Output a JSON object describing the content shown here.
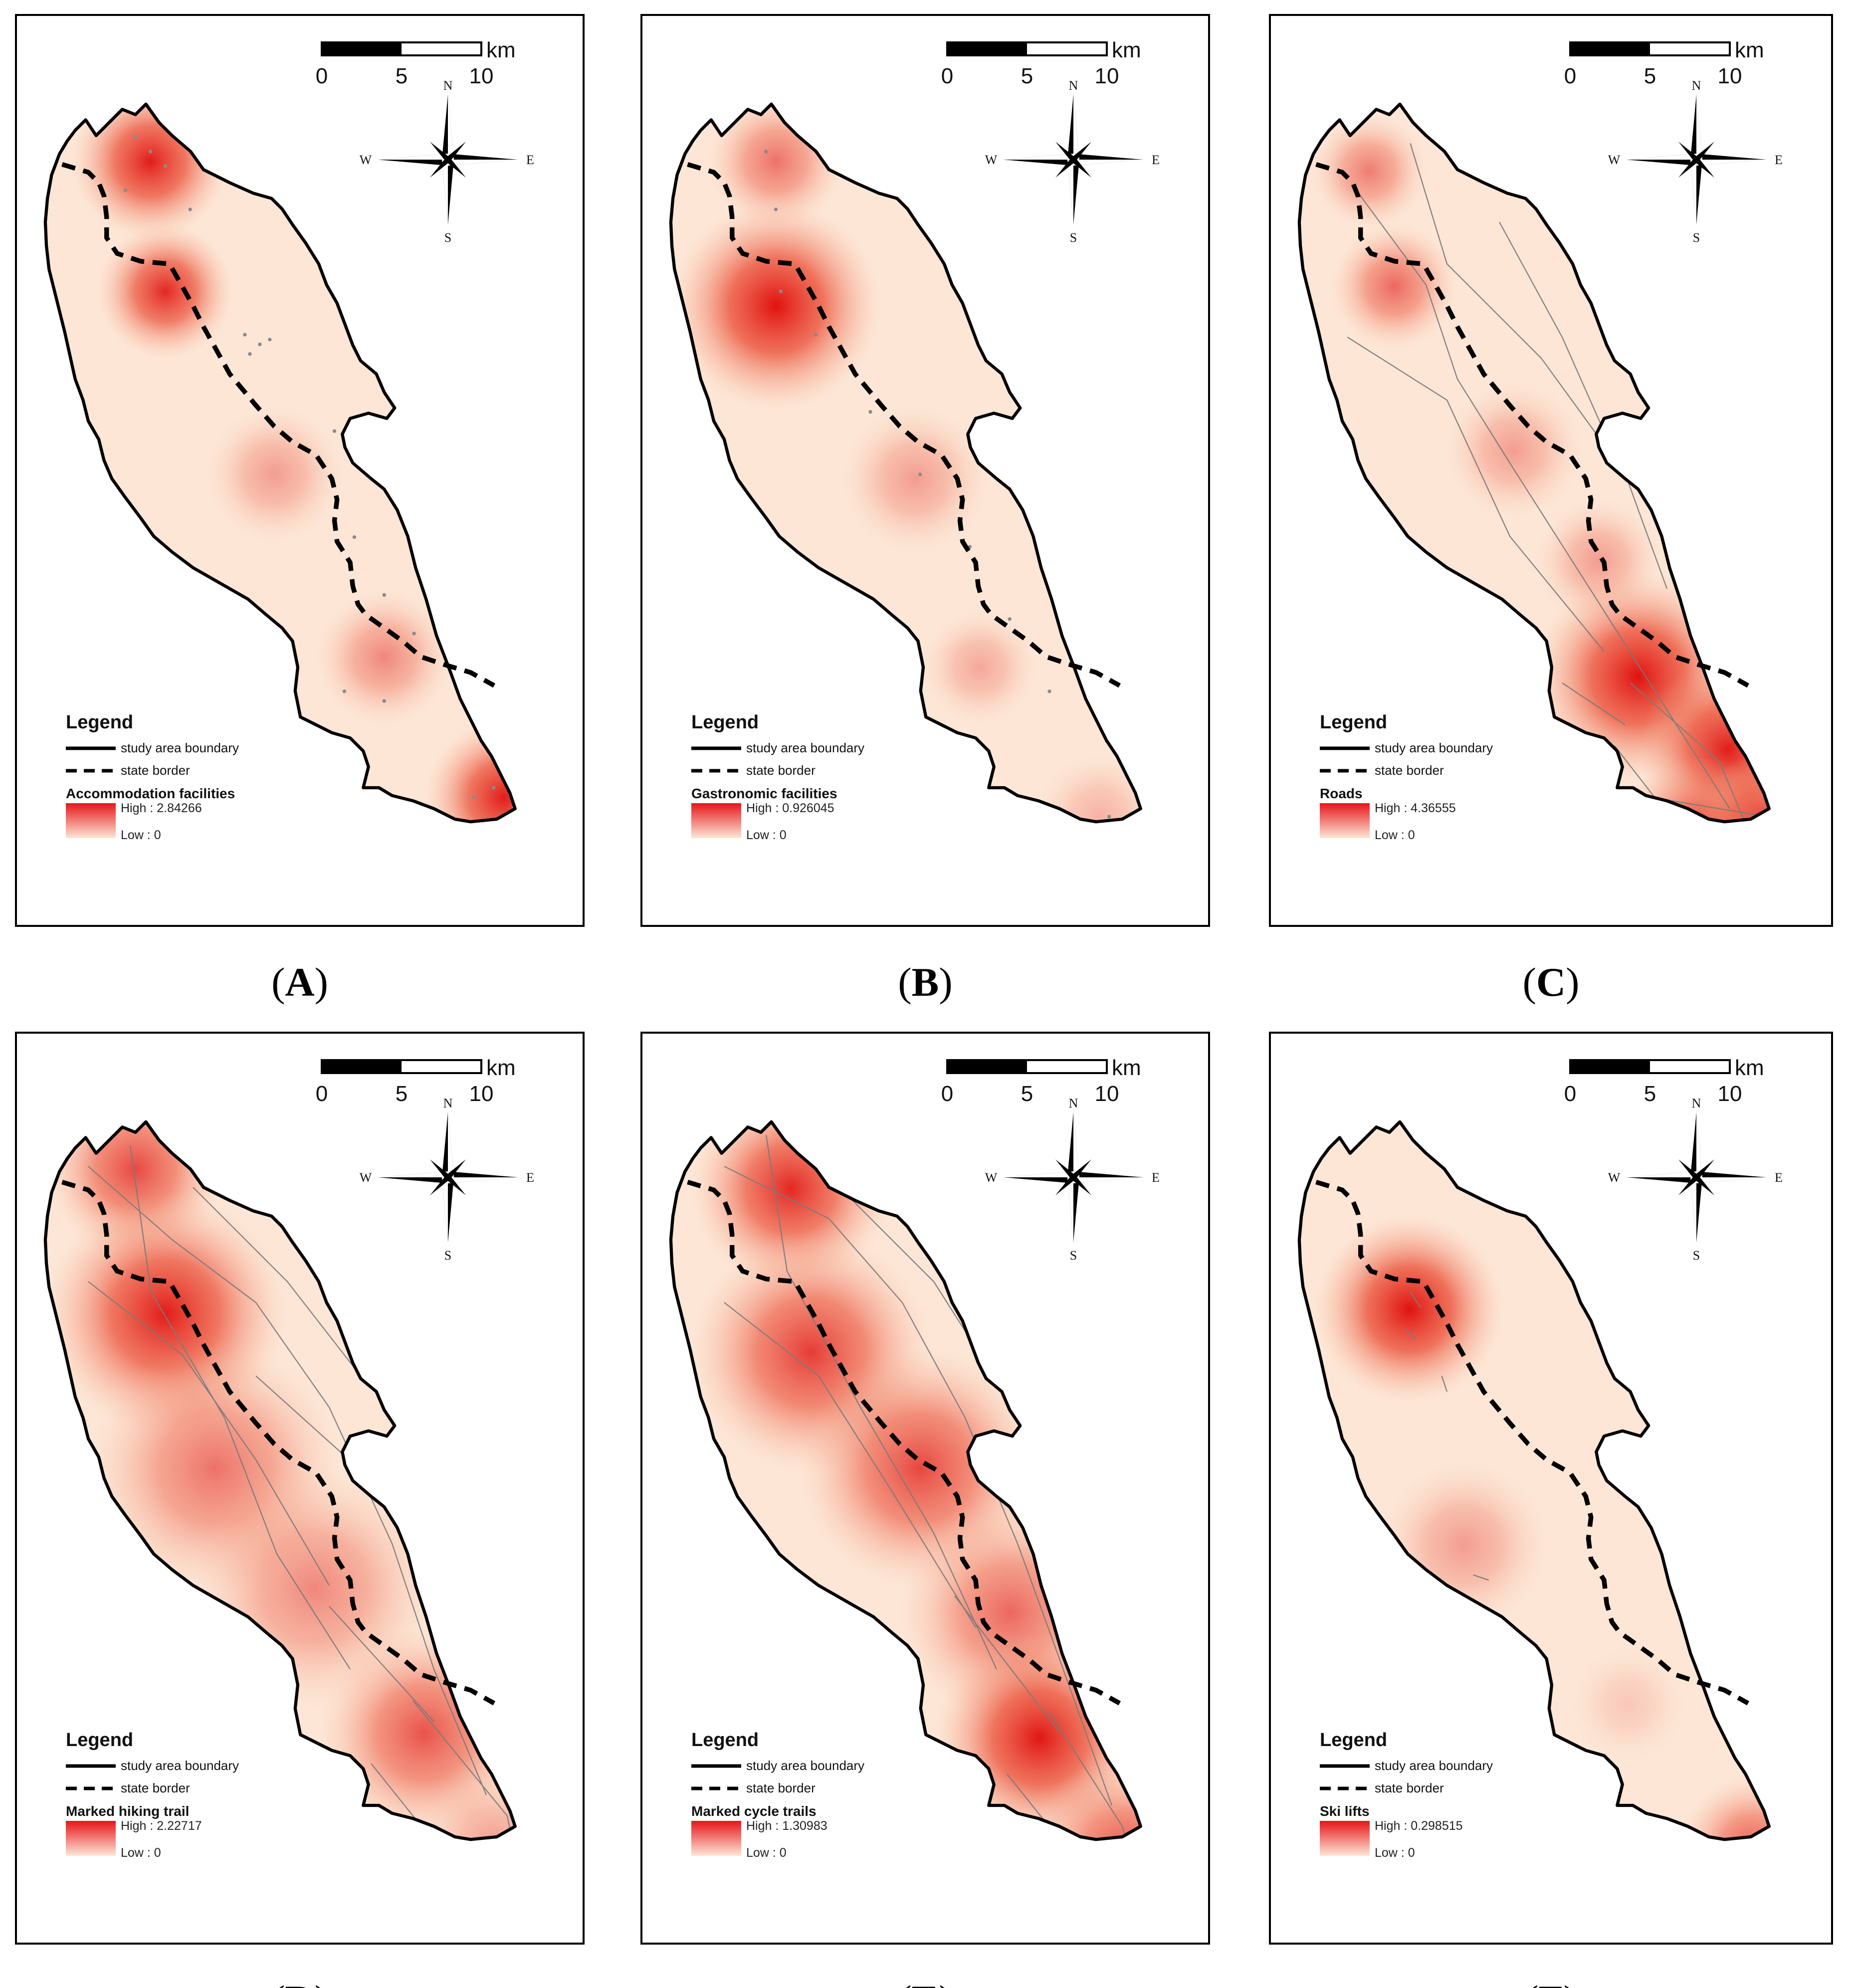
{
  "legend": {
    "title": "Legend",
    "boundary_label": "study area boundary",
    "border_label": "state border",
    "low_label": "Low : 0"
  },
  "scale_bar": {
    "ticks": [
      "0",
      "5",
      "10"
    ],
    "unit": "km"
  },
  "compass": {
    "n": "N",
    "s": "S",
    "e": "E",
    "w": "W"
  },
  "colors": {
    "density_high": "#e8161a",
    "density_low": "#fde6d6",
    "boundary": "#000000",
    "trail_lines": "#7a7a7a"
  },
  "panels": [
    {
      "letter": "A",
      "caption_open": "(",
      "caption_close": ")",
      "layer": "Accommodation facilities",
      "high_label": "High : 2.84266",
      "high_value": 2.84266,
      "feature_type": "points"
    },
    {
      "letter": "B",
      "caption_open": "(",
      "caption_close": ")",
      "layer": "Gastronomic facilities",
      "high_label": "High : 0.926045",
      "high_value": 0.926045,
      "feature_type": "points"
    },
    {
      "letter": "C",
      "caption_open": "(",
      "caption_close": ")",
      "layer": "Roads",
      "high_label": "High : 4.36555",
      "high_value": 4.36555,
      "feature_type": "lines"
    },
    {
      "letter": "D",
      "caption_open": "(",
      "caption_close": ")",
      "layer": "Marked hiking trail",
      "high_label": "High : 2.22717",
      "high_value": 2.22717,
      "feature_type": "lines"
    },
    {
      "letter": "E",
      "caption_open": "(",
      "caption_close": ")",
      "layer": "Marked cycle trails",
      "high_label": "High : 1.30983",
      "high_value": 1.30983,
      "feature_type": "lines"
    },
    {
      "letter": "F",
      "caption_open": "(",
      "caption_close": ")",
      "layer": "Ski lifts",
      "high_label": "High : 0.298515",
      "high_value": 0.298515,
      "feature_type": "segments"
    }
  ]
}
